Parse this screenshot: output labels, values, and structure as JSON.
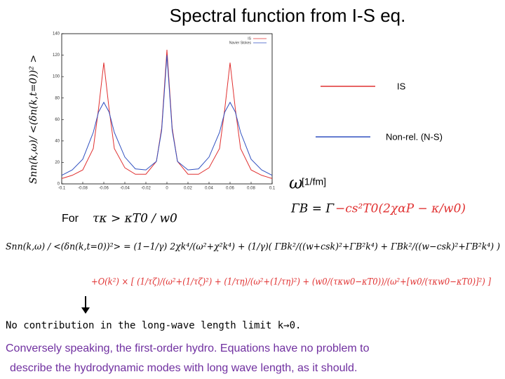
{
  "chart_data": {
    "type": "line",
    "x": [
      -0.1,
      -0.09,
      -0.08,
      -0.07,
      -0.065,
      -0.06,
      -0.055,
      -0.05,
      -0.04,
      -0.03,
      -0.02,
      -0.01,
      -0.005,
      0,
      0.005,
      0.01,
      0.02,
      0.03,
      0.04,
      0.05,
      0.055,
      0.06,
      0.065,
      0.07,
      0.08,
      0.09,
      0.1
    ],
    "series": [
      {
        "name": "IS",
        "color": "#e03030",
        "values": [
          5,
          8,
          13,
          33,
          70,
          113,
          70,
          33,
          15,
          9,
          9,
          21,
          52,
          125,
          52,
          21,
          9,
          9,
          15,
          33,
          70,
          113,
          70,
          33,
          13,
          8,
          5
        ]
      },
      {
        "name": "Navier Stokes",
        "color": "#3050c0",
        "values": [
          8,
          13,
          23,
          48,
          67,
          76,
          67,
          48,
          25,
          14,
          13,
          21,
          50,
          120,
          50,
          21,
          13,
          14,
          25,
          48,
          67,
          76,
          67,
          48,
          23,
          13,
          8
        ]
      }
    ],
    "xlim": [
      -0.1,
      0.1
    ],
    "xticks": [
      -0.1,
      -0.08,
      -0.06,
      -0.04,
      -0.02,
      0,
      0.02,
      0.04,
      0.06,
      0.08,
      0.1
    ],
    "ylim": [
      0,
      140
    ],
    "yticks": [
      0,
      20,
      40,
      60,
      80,
      100,
      120,
      140
    ]
  },
  "slide": {
    "title": "Spectral function from I-S eq.",
    "y_axis_label": "Snn(k,ω)/ <(δn(k,t=0))² >",
    "omega": "ω",
    "unit": "[1/fm]",
    "legend": [
      "IS",
      "Non-rel. (N-S)"
    ],
    "for_label": "For",
    "condition": "τκ > κT0 / w0",
    "gamma_b_left": "ΓB = Γ",
    "gamma_b_right": "−cs²T0(2χαP − κ/w0)",
    "eq_line1": "Snn(k,ω) / <(δn(k,t=0))²> = (1−1/γ) 2χk⁴/(ω²+χ²k⁴) + (1/γ)( ΓBk²/((w+csk)²+ΓB²k⁴) + ΓBk²/((w−csk)²+ΓB²k⁴) )",
    "eq_line2": "+O(k²) × [ (1/τζ)/(ω²+(1/τζ)²) + (1/τη)/(ω²+(1/τη)²) + (w0/(τκw0−κT0))/(ω²+[w0/(τκw0−κT0)]²) ]",
    "note": "No contribution in the long-wave length limit k→0.",
    "conclusion": [
      "Conversely speaking, the first-order hydro. Equations have no problem to",
      "describe the hydrodynamic modes with long wave length, as it should."
    ]
  }
}
